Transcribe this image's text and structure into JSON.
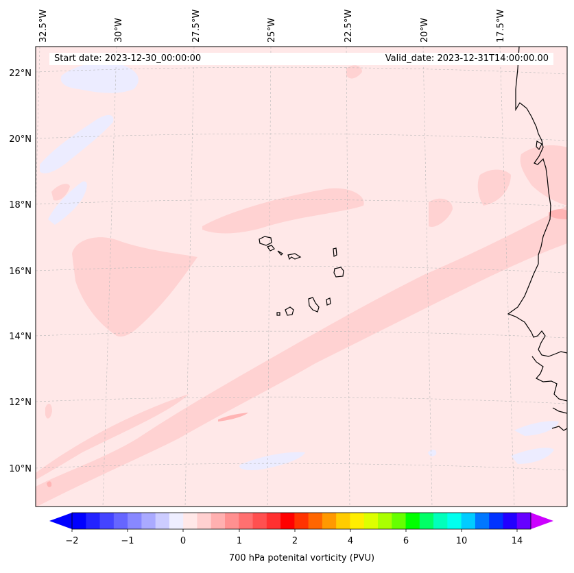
{
  "map": {
    "start_date_text": "Start date: 2023-12-30_00:00:00",
    "valid_date_text": "Valid_date: 2023-12-31T14:00:00.00",
    "lon_labels": [
      "32.5°W",
      "30°W",
      "27.5°W",
      "25°W",
      "22.5°W",
      "20°W",
      "17.5°W"
    ],
    "lat_labels": [
      "22°N",
      "20°N",
      "18°N",
      "16°N",
      "14°N",
      "12°N",
      "10°N"
    ],
    "background_color": "#ffe8e8",
    "feature_colors": {
      "light_pink": "#ffd2d2",
      "medium_pink": "#ffb4b4",
      "pale_blue": "#ececff",
      "coastline": "#000000"
    }
  },
  "colorbar": {
    "label": "700 hPa potenital vorticity (PVU)",
    "tick_labels": [
      "−2",
      "−1",
      "0",
      "1",
      "2",
      "4",
      "6",
      "10",
      "14"
    ],
    "colors": [
      "#0000ff",
      "#2222ff",
      "#4444ff",
      "#6666ff",
      "#8888ff",
      "#aaaaff",
      "#ccccff",
      "#eeeeff",
      "#ffe8e8",
      "#ffd0d0",
      "#ffb0b0",
      "#ff9090",
      "#ff7070",
      "#ff5050",
      "#ff3030",
      "#ff0000",
      "#ff3300",
      "#ff6600",
      "#ff9900",
      "#ffcc00",
      "#ffee00",
      "#ddff00",
      "#aaff00",
      "#66ff00",
      "#00ff00",
      "#00ff66",
      "#00ffbb",
      "#00ffee",
      "#00ccff",
      "#0077ff",
      "#0033ff",
      "#2200ff",
      "#6600ff"
    ],
    "under_color": "#0000ff",
    "over_color": "#cc00ff"
  }
}
